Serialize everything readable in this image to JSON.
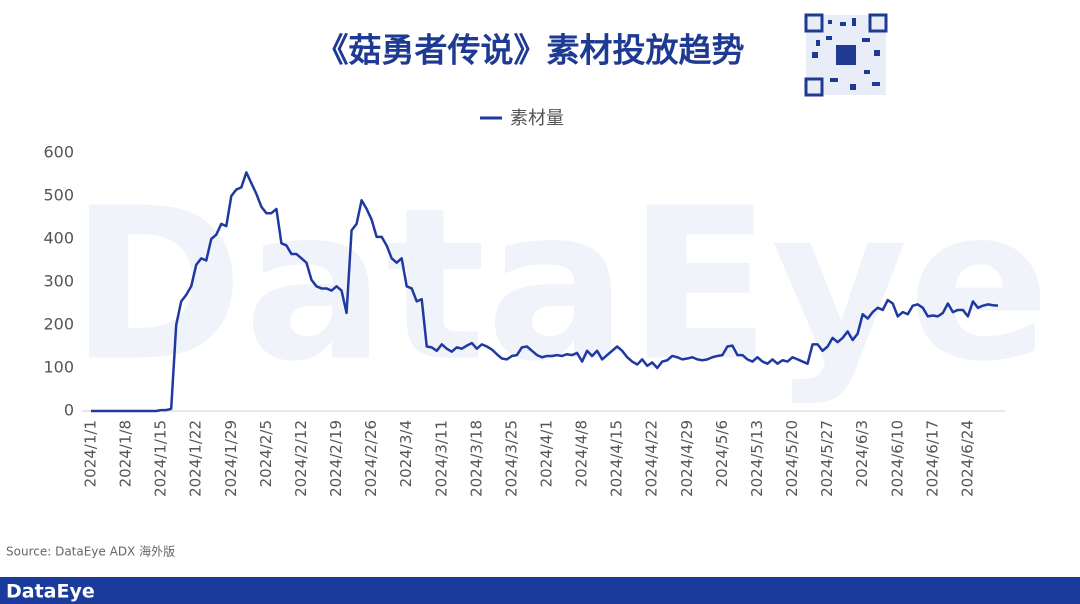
{
  "chart_data": {
    "type": "line",
    "title": "《菇勇者传说》素材投放趋势",
    "categories": [
      "2024/1/1",
      null,
      null,
      null,
      null,
      null,
      null,
      "2024/1/8",
      null,
      null,
      null,
      null,
      null,
      null,
      "2024/1/15",
      null,
      null,
      null,
      null,
      null,
      null,
      "2024/1/22",
      null,
      null,
      null,
      null,
      null,
      null,
      "2024/1/29",
      null,
      null,
      null,
      null,
      null,
      null,
      "2024/2/5",
      null,
      null,
      null,
      null,
      null,
      null,
      "2024/2/12",
      null,
      null,
      null,
      null,
      null,
      null,
      "2024/2/19",
      null,
      null,
      null,
      null,
      null,
      null,
      "2024/2/26",
      null,
      null,
      null,
      null,
      null,
      null,
      "2024/3/4",
      null,
      null,
      null,
      null,
      null,
      null,
      "2024/3/11",
      null,
      null,
      null,
      null,
      null,
      null,
      "2024/3/18",
      null,
      null,
      null,
      null,
      null,
      null,
      "2024/3/25",
      null,
      null,
      null,
      null,
      null,
      null,
      "2024/4/1",
      null,
      null,
      null,
      null,
      null,
      null,
      "2024/4/8",
      null,
      null,
      null,
      null,
      null,
      null,
      "2024/4/15",
      null,
      null,
      null,
      null,
      null,
      null,
      "2024/4/22",
      null,
      null,
      null,
      null,
      null,
      null,
      "2024/4/29",
      null,
      null,
      null,
      null,
      null,
      null,
      "2024/5/6",
      null,
      null,
      null,
      null,
      null,
      null,
      "2024/5/13",
      null,
      null,
      null,
      null,
      null,
      null,
      "2024/5/20",
      null,
      null,
      null,
      null,
      null,
      null,
      "2024/5/27",
      null,
      null,
      null,
      null,
      null,
      null,
      "2024/6/3",
      null,
      null,
      null,
      null,
      null,
      null,
      "2024/6/10",
      null,
      null,
      null,
      null,
      null,
      null,
      "2024/6/17",
      null,
      null,
      null,
      null,
      null,
      null,
      "2024/6/24",
      null,
      null,
      null,
      null,
      null,
      null
    ],
    "series": [
      {
        "name": "素材量",
        "color": "#2039a0",
        "values": [
          0,
          0,
          0,
          0,
          0,
          0,
          0,
          0,
          0,
          0,
          0,
          0,
          0,
          0,
          2,
          2,
          5,
          200,
          255,
          270,
          290,
          340,
          355,
          350,
          400,
          410,
          435,
          430,
          500,
          515,
          520,
          555,
          530,
          505,
          475,
          460,
          460,
          470,
          390,
          385,
          365,
          365,
          355,
          345,
          305,
          290,
          285,
          285,
          280,
          290,
          280,
          228,
          420,
          435,
          490,
          470,
          445,
          405,
          405,
          385,
          355,
          345,
          355,
          290,
          285,
          255,
          260,
          150,
          148,
          140,
          155,
          145,
          138,
          148,
          145,
          152,
          158,
          145,
          155,
          150,
          143,
          132,
          122,
          120,
          128,
          130,
          148,
          150,
          140,
          130,
          125,
          128,
          128,
          130,
          128,
          132,
          130,
          135,
          115,
          140,
          128,
          140,
          120,
          130,
          140,
          150,
          140,
          125,
          115,
          108,
          120,
          105,
          113,
          100,
          115,
          118,
          128,
          125,
          120,
          122,
          125,
          120,
          118,
          120,
          125,
          128,
          130,
          150,
          152,
          130,
          130,
          120,
          115,
          125,
          115,
          110,
          120,
          110,
          118,
          115,
          125,
          120,
          115,
          110,
          155,
          155,
          140,
          150,
          170,
          160,
          170,
          185,
          165,
          180,
          225,
          215,
          230,
          240,
          235,
          258,
          250,
          220,
          230,
          225,
          245,
          248,
          240,
          220,
          222,
          220,
          228,
          250,
          230,
          235,
          235,
          220,
          255,
          240,
          245,
          248,
          246,
          245
        ]
      }
    ],
    "ylim": [
      0,
      600
    ],
    "yticks": [
      0,
      100,
      200,
      300,
      400,
      500,
      600
    ],
    "grid": false,
    "legend": "top"
  },
  "watermark": "DataEye",
  "source": "Source: DataEye ADX 海外版",
  "brand": "DataEye"
}
